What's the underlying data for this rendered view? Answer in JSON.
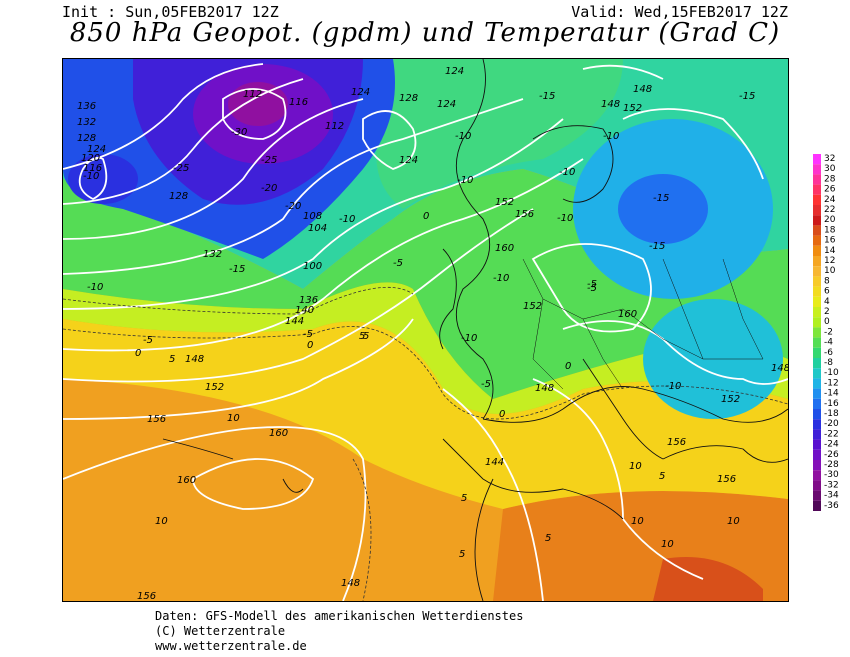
{
  "header": {
    "init": "Init : Sun,05FEB2017 12Z",
    "valid": "Valid: Wed,15FEB2017 12Z",
    "title": "850 hPa Geopot. (gpdm) und Temperatur (Grad C)"
  },
  "credits": {
    "line1": "Daten: GFS-Modell des amerikanischen Wetterdienstes",
    "line2": "(C) Wetterzentrale",
    "line3": "www.wetterzentrale.de"
  },
  "colorscale": {
    "values": [
      "32",
      "30",
      "28",
      "26",
      "24",
      "22",
      "20",
      "18",
      "16",
      "14",
      "12",
      "10",
      "8",
      "6",
      "4",
      "2",
      "0",
      "-2",
      "-4",
      "-6",
      "-8",
      "-10",
      "-12",
      "-14",
      "-16",
      "-18",
      "-20",
      "-22",
      "-24",
      "-26",
      "-28",
      "-30",
      "-32",
      "-34",
      "-36"
    ],
    "colors": [
      "#ff33ff",
      "#ff33cc",
      "#ff3399",
      "#ff3366",
      "#ff3333",
      "#e62e2e",
      "#cc1a1a",
      "#d94d1a",
      "#e66a10",
      "#f08c10",
      "#f5a623",
      "#f7b733",
      "#f7cb2a",
      "#f2dc20",
      "#e8ec1a",
      "#c8f01e",
      "#b0f020",
      "#7ee63c",
      "#55de55",
      "#34d870",
      "#20d0a0",
      "#20c8c8",
      "#20b4e6",
      "#2090f0",
      "#2070f0",
      "#2050e8",
      "#2a30e0",
      "#4020d8",
      "#5a10d0",
      "#7010c8",
      "#8410b8",
      "#9010a0",
      "#800c88",
      "#6a0a70",
      "#500858"
    ]
  },
  "map": {
    "height_labels": [
      "136",
      "132",
      "128",
      "124",
      "120",
      "116",
      "112",
      "108",
      "104",
      "100",
      "112",
      "116",
      "128",
      "132",
      "136",
      "140",
      "144",
      "148",
      "152",
      "156",
      "160",
      "160",
      "156",
      "152",
      "148",
      "144",
      "148",
      "152",
      "156",
      "160",
      "160",
      "156",
      "152",
      "148",
      "148",
      "124",
      "124",
      "124",
      "124",
      "128",
      "148",
      "152",
      "156"
    ],
    "temp_labels": [
      "-30",
      "-25",
      "-25",
      "-20",
      "-20",
      "-15",
      "-10",
      "-10",
      "-10",
      "-5",
      "-5",
      "-5",
      "0",
      "0",
      "0",
      "5",
      "5",
      "5",
      "5",
      "10",
      "10",
      "10",
      "10",
      "-10",
      "-10",
      "-10",
      "-10",
      "-15",
      "-15",
      "-15",
      "-10",
      "-10",
      "-10",
      "-5",
      "-5",
      "0",
      "5",
      "5",
      "10",
      "10",
      "-15",
      "-10",
      "-5",
      "0",
      "5"
    ]
  }
}
